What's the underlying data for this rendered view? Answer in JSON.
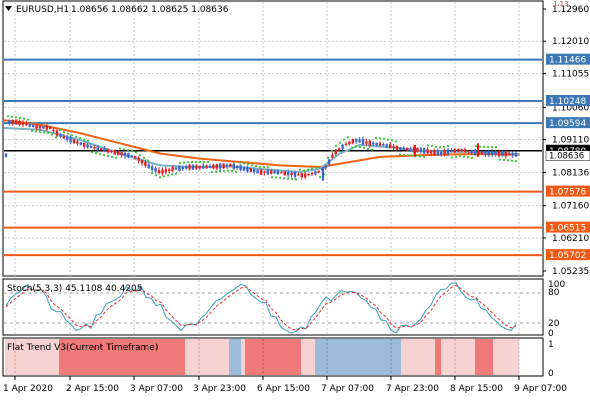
{
  "header": {
    "symbol": "EURUSD,H1",
    "ohlc": "1.08656 1.08662 1.08625 1.08636"
  },
  "colors": {
    "grid": "#c8c8c8",
    "frame": "#000000",
    "level_blue": "#3c78b4",
    "level_orange": "#f05a14",
    "ma_slow": "#f06414",
    "ma_fast": "#78b4c8",
    "psar": "#32c832",
    "bull": "#3c64c8",
    "bear": "#e02020",
    "stoch_main": "#3aa0b8",
    "stoch_signal": "#e03030",
    "flat_red": "#e62020",
    "flat_blue": "#5a8cc0",
    "flat_pink": "#f0b4b4",
    "label_blue_bg": "#3c78b4",
    "label_orange_bg": "#f05a14",
    "label_black_bg": "#000000"
  },
  "price_axis": {
    "labels": [
      "1.12960",
      "1.12010",
      "1.11055",
      "1.10060",
      "1.09110",
      "1.08136",
      "1.07160",
      "1.06210",
      "1.05235"
    ],
    "top_clip": "1.13"
  },
  "levels": [
    {
      "price": 1.11466,
      "label": "1.11466",
      "kind": "blue"
    },
    {
      "price": 1.10248,
      "label": "1.10248",
      "kind": "blue"
    },
    {
      "price": 1.09594,
      "label": "1.09594",
      "kind": "blue"
    },
    {
      "price": 1.0878,
      "label": "1.08780",
      "kind": "black"
    },
    {
      "price": 1.07576,
      "label": "1.07576",
      "kind": "orange"
    },
    {
      "price": 1.06515,
      "label": "1.06515",
      "kind": "orange"
    },
    {
      "price": 1.05702,
      "label": "1.05702",
      "kind": "orange"
    }
  ],
  "current_price": {
    "label": "1.08636"
  },
  "stoch": {
    "title": "Stoch(5,3,3) 45.1108 40.4205",
    "axis_labels": [
      "100",
      "80",
      "20",
      "0"
    ]
  },
  "flat_trend": {
    "title": "Flat Trend V3(Current Timeframe)",
    "axis_labels": [
      "1",
      "0"
    ]
  },
  "time_axis": {
    "labels": [
      "1 Apr 2020",
      "2 Apr 15:00",
      "3 Apr 07:00",
      "3 Apr 23:00",
      "6 Apr 15:00",
      "7 Apr 07:00",
      "7 Apr 23:00",
      "8 Apr 15:00",
      "9 Apr 07:00"
    ]
  }
}
